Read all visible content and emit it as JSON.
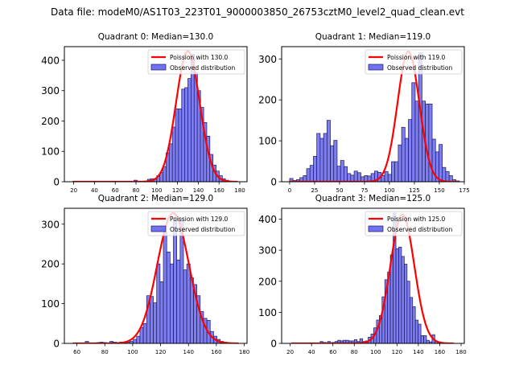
{
  "suptitle": "Data file: modeM0/AS1T03_223T01_9000003850_26753cztM0_level2_quad_clean.evt",
  "colors": {
    "fit_line": "#ff0000",
    "bar_fill": "#7070f0",
    "bar_edge": "#1a1a5a"
  },
  "chart_data": [
    {
      "type": "bar",
      "title": "Quadrant 0: Median=130.0",
      "legend": [
        "Poission with 130.0",
        "Observed distribution"
      ],
      "legend_position": "top-right",
      "xlim": [
        11,
        187
      ],
      "ylim": [
        0,
        445
      ],
      "xticks": [
        20,
        40,
        60,
        80,
        100,
        120,
        140,
        160,
        180
      ],
      "yticks": [
        0,
        100,
        200,
        300,
        400
      ],
      "bin_width": 3.2,
      "bins": [
        [
          65,
          1
        ],
        [
          68,
          1
        ],
        [
          78,
          5
        ],
        [
          81,
          2
        ],
        [
          88,
          2
        ],
        [
          91,
          8
        ],
        [
          94,
          10
        ],
        [
          97,
          8
        ],
        [
          100,
          20
        ],
        [
          103,
          30
        ],
        [
          106,
          50
        ],
        [
          109,
          95
        ],
        [
          112,
          125
        ],
        [
          115,
          180
        ],
        [
          118,
          240
        ],
        [
          121,
          240
        ],
        [
          124,
          305
        ],
        [
          127,
          310
        ],
        [
          130,
          340
        ],
        [
          133,
          420
        ],
        [
          136,
          360
        ],
        [
          139,
          300
        ],
        [
          142,
          245
        ],
        [
          145,
          195
        ],
        [
          148,
          150
        ],
        [
          151,
          90
        ],
        [
          154,
          55
        ],
        [
          157,
          35
        ],
        [
          160,
          20
        ],
        [
          163,
          10
        ],
        [
          166,
          5
        ],
        [
          169,
          2
        ],
        [
          172,
          1
        ]
      ],
      "poisson_mean": 130.0,
      "poisson_peak": 430,
      "fit_range": [
        19,
        178
      ]
    },
    {
      "type": "bar",
      "title": "Quadrant 1: Median=119.0",
      "legend": [
        "Poission with 119.0",
        "Observed distribution"
      ],
      "legend_position": "top-right",
      "xlim": [
        -8,
        175
      ],
      "ylim": [
        0,
        330
      ],
      "xticks": [
        0,
        25,
        50,
        75,
        100,
        125,
        150,
        175
      ],
      "yticks": [
        0,
        100,
        200,
        300
      ],
      "bin_width": 3.4,
      "bins": [
        [
          0,
          8
        ],
        [
          3.4,
          3
        ],
        [
          6.8,
          5
        ],
        [
          10.2,
          10
        ],
        [
          13.6,
          15
        ],
        [
          17,
          32
        ],
        [
          20.4,
          40
        ],
        [
          23.8,
          62
        ],
        [
          27.2,
          118
        ],
        [
          30.6,
          106
        ],
        [
          34,
          118
        ],
        [
          37.4,
          150
        ],
        [
          40.8,
          88
        ],
        [
          44.2,
          101
        ],
        [
          47.6,
          38
        ],
        [
          51,
          52
        ],
        [
          54.4,
          37
        ],
        [
          57.8,
          20
        ],
        [
          61.2,
          16
        ],
        [
          64.6,
          26
        ],
        [
          68,
          22
        ],
        [
          71.4,
          12
        ],
        [
          74.8,
          15
        ],
        [
          78.2,
          14
        ],
        [
          81.6,
          20
        ],
        [
          85,
          26
        ],
        [
          88.4,
          23
        ],
        [
          91.8,
          15
        ],
        [
          95.2,
          25
        ],
        [
          98.6,
          18
        ],
        [
          102,
          49
        ],
        [
          105.4,
          49
        ],
        [
          108.8,
          90
        ],
        [
          112.2,
          133
        ],
        [
          115.6,
          106
        ],
        [
          119,
          152
        ],
        [
          122.4,
          242
        ],
        [
          125.8,
          197
        ],
        [
          129.2,
          315
        ],
        [
          132.6,
          197
        ],
        [
          136,
          190
        ],
        [
          139.4,
          190
        ],
        [
          142.8,
          104
        ],
        [
          146.2,
          73
        ],
        [
          149.6,
          91
        ],
        [
          153,
          35
        ],
        [
          156.4,
          25
        ],
        [
          159.8,
          15
        ],
        [
          163.2,
          5
        ],
        [
          166.6,
          2
        ]
      ],
      "poisson_mean": 119.0,
      "poisson_peak": 318,
      "fit_range": [
        0,
        168
      ]
    },
    {
      "type": "bar",
      "title": "Quadrant 2: Median=129.0",
      "legend": [
        "Poission with 129.0",
        "Observed distribution"
      ],
      "legend_position": "top-right",
      "xlim": [
        51,
        182
      ],
      "ylim": [
        0,
        340
      ],
      "xticks": [
        60,
        80,
        100,
        120,
        140,
        160,
        180
      ],
      "yticks": [
        0,
        100,
        200,
        300
      ],
      "bin_width": 2.4,
      "bins": [
        [
          66,
          5
        ],
        [
          74,
          2
        ],
        [
          76.4,
          3
        ],
        [
          78.8,
          2
        ],
        [
          83.6,
          5
        ],
        [
          86,
          3
        ],
        [
          90.8,
          3
        ],
        [
          93.2,
          2
        ],
        [
          95.6,
          3
        ],
        [
          98,
          5
        ],
        [
          100.4,
          10
        ],
        [
          102.8,
          18
        ],
        [
          105.2,
          40
        ],
        [
          107.6,
          50
        ],
        [
          110,
          120
        ],
        [
          112.4,
          118
        ],
        [
          114.8,
          102
        ],
        [
          117.2,
          200
        ],
        [
          119.6,
          155
        ],
        [
          122,
          280
        ],
        [
          124.4,
          230
        ],
        [
          126.8,
          200
        ],
        [
          129.2,
          310
        ],
        [
          131.6,
          210
        ],
        [
          134,
          315
        ],
        [
          136.4,
          185
        ],
        [
          138.8,
          200
        ],
        [
          141.2,
          165
        ],
        [
          143.6,
          148
        ],
        [
          146,
          120
        ],
        [
          148.4,
          80
        ],
        [
          150.8,
          63
        ],
        [
          153.2,
          58
        ],
        [
          155.6,
          30
        ],
        [
          158,
          18
        ],
        [
          160.4,
          10
        ],
        [
          162.8,
          5
        ],
        [
          165.2,
          3
        ],
        [
          167.6,
          2
        ],
        [
          170,
          1
        ]
      ],
      "poisson_mean": 129.0,
      "poisson_peak": 328,
      "fit_range": [
        57,
        176
      ]
    },
    {
      "type": "bar",
      "title": "Quadrant 3: Median=125.0",
      "legend": [
        "Poission with 125.0",
        "Observed distribution"
      ],
      "legend_position": "top-right",
      "xlim": [
        12,
        183
      ],
      "ylim": [
        0,
        435
      ],
      "xticks": [
        20,
        40,
        60,
        80,
        100,
        120,
        140,
        160,
        180
      ],
      "yticks": [
        0,
        100,
        200,
        300,
        400
      ],
      "bin_width": 2.6,
      "bins": [
        [
          48,
          6
        ],
        [
          51,
          3
        ],
        [
          55,
          6
        ],
        [
          59,
          3
        ],
        [
          62,
          6
        ],
        [
          64.5,
          10
        ],
        [
          67,
          8
        ],
        [
          69.6,
          10
        ],
        [
          72.2,
          10
        ],
        [
          74.8,
          8
        ],
        [
          77.4,
          8
        ],
        [
          80,
          12
        ],
        [
          82.6,
          6
        ],
        [
          85.2,
          15
        ],
        [
          87.8,
          6
        ],
        [
          90.4,
          8
        ],
        [
          93,
          20
        ],
        [
          95.6,
          30
        ],
        [
          98.2,
          50
        ],
        [
          100.8,
          75
        ],
        [
          103.4,
          90
        ],
        [
          106,
          150
        ],
        [
          108.6,
          205
        ],
        [
          111.2,
          230
        ],
        [
          113.8,
          285
        ],
        [
          116.4,
          420
        ],
        [
          119,
          305
        ],
        [
          121.6,
          310
        ],
        [
          124.2,
          280
        ],
        [
          126.8,
          255
        ],
        [
          129.4,
          200
        ],
        [
          132,
          148
        ],
        [
          134.6,
          118
        ],
        [
          137.2,
          75
        ],
        [
          139.8,
          62
        ],
        [
          142.4,
          25
        ],
        [
          145,
          25
        ],
        [
          147.6,
          10
        ],
        [
          150.2,
          5
        ],
        [
          152.8,
          28
        ],
        [
          155.4,
          8
        ],
        [
          158,
          5
        ],
        [
          160.6,
          2
        ]
      ],
      "poisson_mean": 125.0,
      "poisson_peak": 415,
      "fit_range": [
        21,
        173
      ]
    }
  ]
}
